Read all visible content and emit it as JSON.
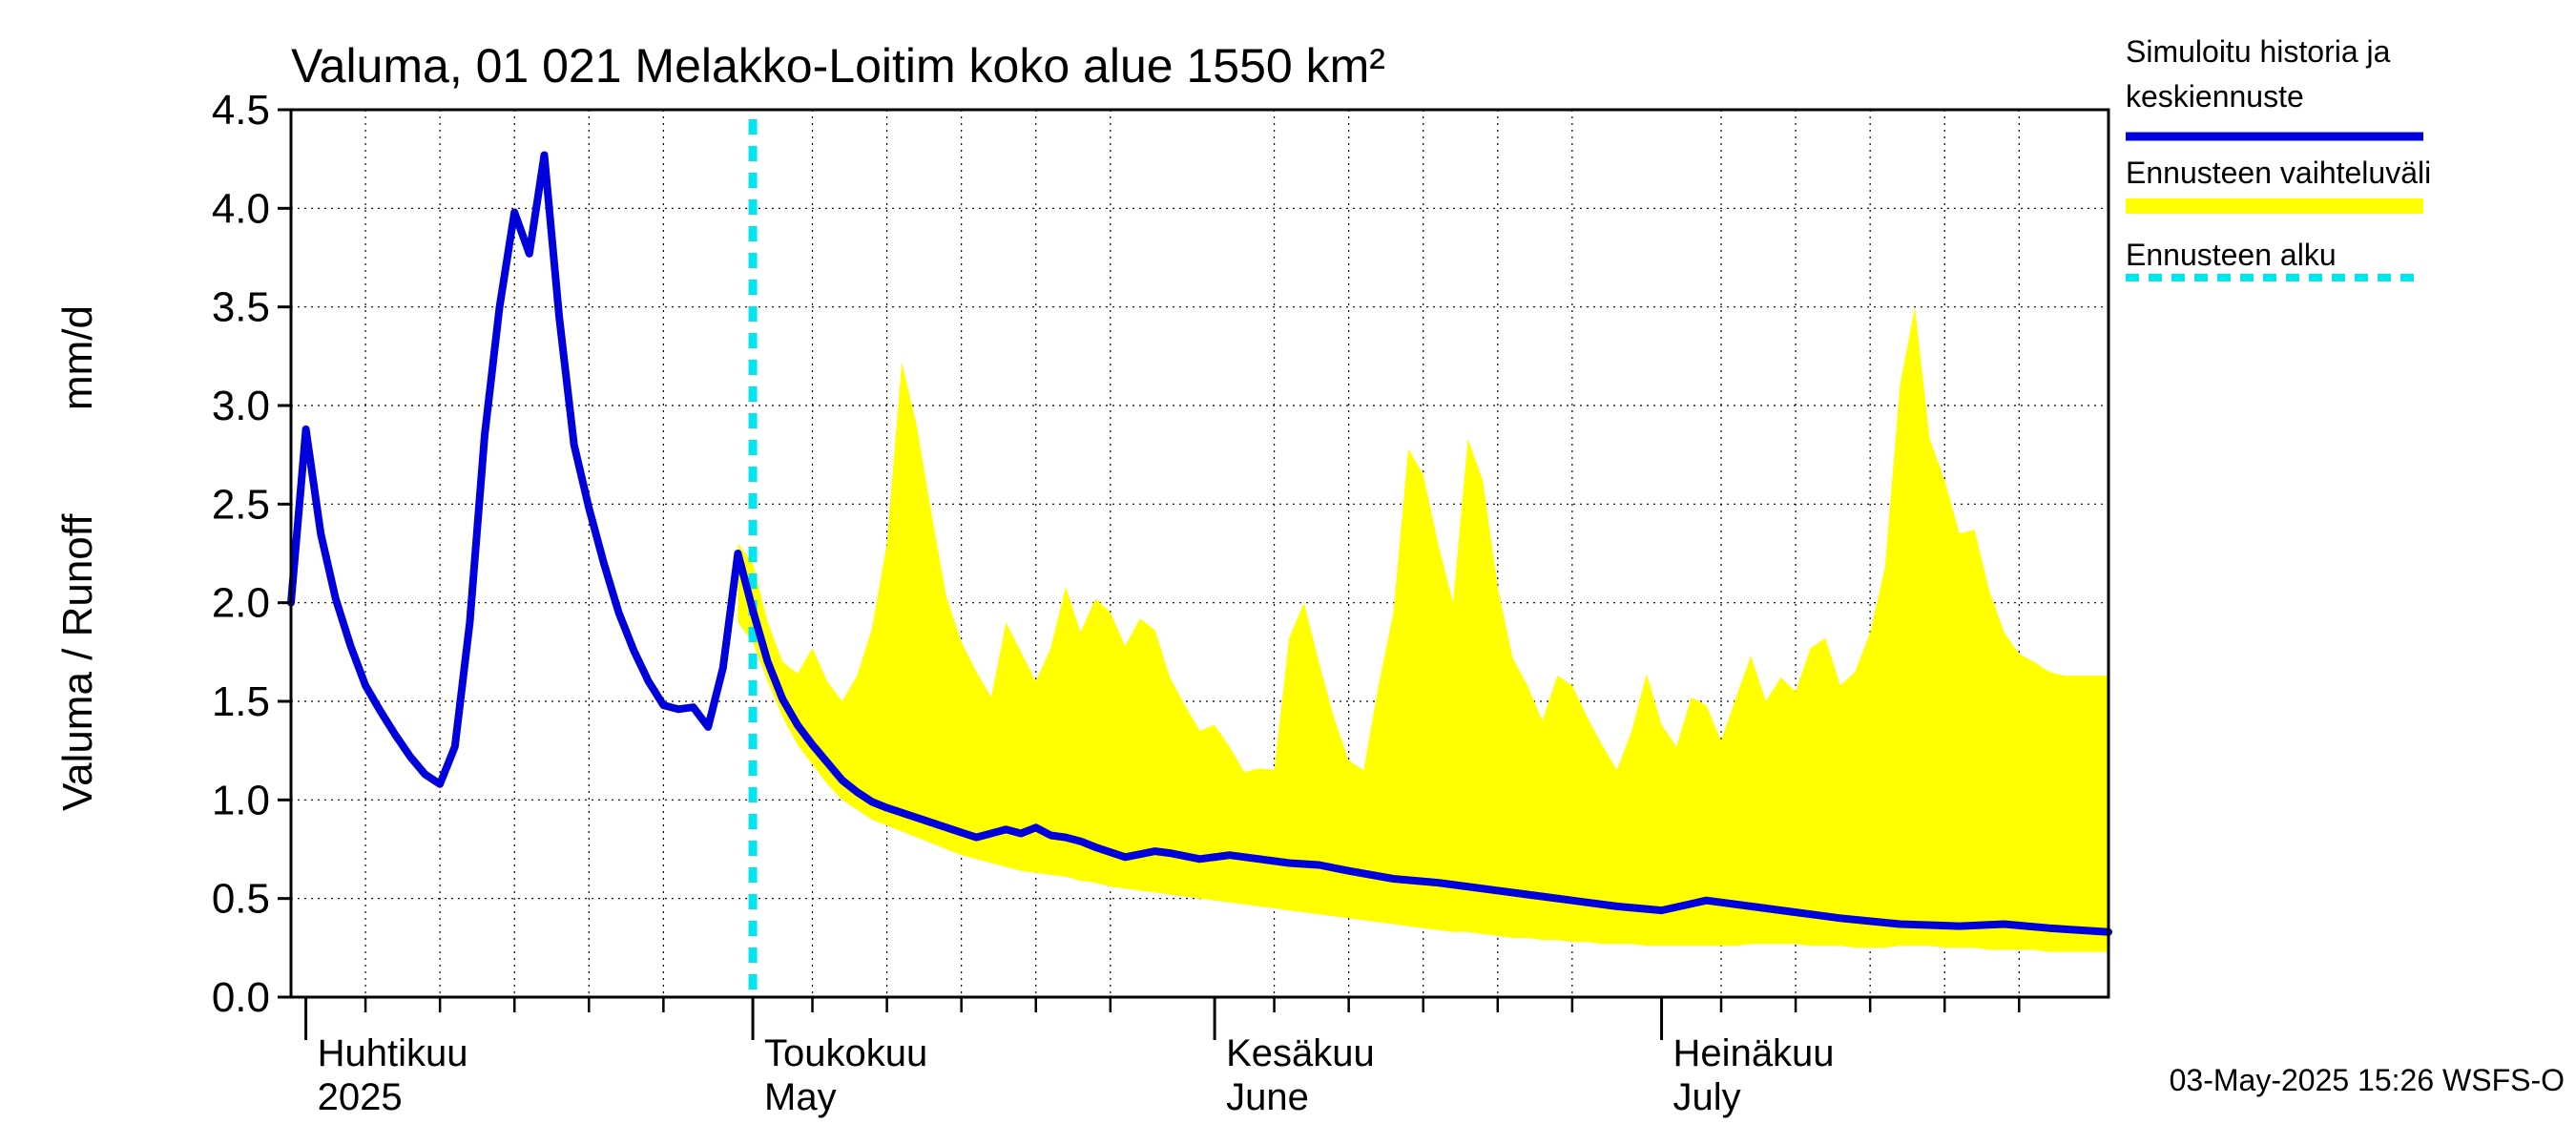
{
  "chart_data": {
    "type": "line",
    "title": "Valuma, 01 021 Melakko-Loitim koko alue 1550 km²",
    "ylabel_left": "Valuma / Runoff",
    "ylabel_unit": "mm/d",
    "ylim": [
      0,
      4.5
    ],
    "yticks": [
      "0.0",
      "0.5",
      "1.0",
      "1.5",
      "2.0",
      "2.5",
      "3.0",
      "3.5",
      "4.0",
      "4.5"
    ],
    "xlim": [
      "2025-03-31",
      "2025-07-31"
    ],
    "month_labels": [
      {
        "line1": "Huhtikuu",
        "line2": "2025",
        "start": "2025-04-01"
      },
      {
        "line1": "Toukokuu",
        "line2": "May",
        "start": "2025-05-01"
      },
      {
        "line1": "Kesäkuu",
        "line2": "June",
        "start": "2025-06-01"
      },
      {
        "line1": "Heinäkuu",
        "line2": "July",
        "start": "2025-07-01"
      }
    ],
    "forecast_start": "2025-05-01",
    "grid": true,
    "legend_position": "right",
    "series": [
      {
        "name": "Simuloitu historia ja keskiennuste",
        "kind": "line",
        "color": "#0000dd",
        "dates": [
          "2025-03-31",
          "2025-04-01",
          "2025-04-02",
          "2025-04-03",
          "2025-04-04",
          "2025-04-05",
          "2025-04-06",
          "2025-04-07",
          "2025-04-08",
          "2025-04-09",
          "2025-04-10",
          "2025-04-11",
          "2025-04-12",
          "2025-04-13",
          "2025-04-14",
          "2025-04-15",
          "2025-04-16",
          "2025-04-17",
          "2025-04-18",
          "2025-04-19",
          "2025-04-20",
          "2025-04-21",
          "2025-04-22",
          "2025-04-23",
          "2025-04-24",
          "2025-04-25",
          "2025-04-26",
          "2025-04-27",
          "2025-04-28",
          "2025-04-29",
          "2025-04-30",
          "2025-05-01",
          "2025-05-02",
          "2025-05-03",
          "2025-05-04",
          "2025-05-05",
          "2025-05-06",
          "2025-05-07",
          "2025-05-08",
          "2025-05-09",
          "2025-05-10",
          "2025-05-12",
          "2025-05-14",
          "2025-05-16",
          "2025-05-18",
          "2025-05-19",
          "2025-05-20",
          "2025-05-21",
          "2025-05-22",
          "2025-05-23",
          "2025-05-24",
          "2025-05-26",
          "2025-05-28",
          "2025-05-29",
          "2025-05-31",
          "2025-06-02",
          "2025-06-04",
          "2025-06-06",
          "2025-06-08",
          "2025-06-10",
          "2025-06-13",
          "2025-06-16",
          "2025-06-19",
          "2025-06-22",
          "2025-06-25",
          "2025-06-28",
          "2025-07-01",
          "2025-07-04",
          "2025-07-07",
          "2025-07-10",
          "2025-07-13",
          "2025-07-17",
          "2025-07-21",
          "2025-07-24",
          "2025-07-27",
          "2025-07-31"
        ],
        "values": [
          2.0,
          2.88,
          2.35,
          2.02,
          1.78,
          1.58,
          1.45,
          1.33,
          1.22,
          1.13,
          1.08,
          1.27,
          1.9,
          2.85,
          3.5,
          3.98,
          3.77,
          4.27,
          3.45,
          2.8,
          2.48,
          2.2,
          1.95,
          1.76,
          1.6,
          1.48,
          1.46,
          1.47,
          1.37,
          1.67,
          2.25,
          1.96,
          1.7,
          1.51,
          1.38,
          1.28,
          1.19,
          1.1,
          1.04,
          0.99,
          0.96,
          0.91,
          0.86,
          0.81,
          0.85,
          0.83,
          0.86,
          0.82,
          0.81,
          0.79,
          0.76,
          0.71,
          0.74,
          0.73,
          0.7,
          0.72,
          0.7,
          0.68,
          0.67,
          0.64,
          0.6,
          0.58,
          0.55,
          0.52,
          0.49,
          0.46,
          0.44,
          0.49,
          0.46,
          0.43,
          0.4,
          0.37,
          0.36,
          0.37,
          0.35,
          0.33
        ]
      },
      {
        "name": "Ennusteen vaihteluväli",
        "kind": "band",
        "color": "#ffff00",
        "dates": [
          "2025-04-30",
          "2025-05-01",
          "2025-05-02",
          "2025-05-03",
          "2025-05-04",
          "2025-05-05",
          "2025-05-06",
          "2025-05-07",
          "2025-05-08",
          "2025-05-09",
          "2025-05-10",
          "2025-05-11",
          "2025-05-12",
          "2025-05-13",
          "2025-05-14",
          "2025-05-15",
          "2025-05-16",
          "2025-05-17",
          "2025-05-18",
          "2025-05-19",
          "2025-05-20",
          "2025-05-21",
          "2025-05-22",
          "2025-05-23",
          "2025-05-24",
          "2025-05-25",
          "2025-05-26",
          "2025-05-27",
          "2025-05-28",
          "2025-05-29",
          "2025-05-30",
          "2025-05-31",
          "2025-06-01",
          "2025-06-02",
          "2025-06-03",
          "2025-06-04",
          "2025-06-05",
          "2025-06-06",
          "2025-06-07",
          "2025-06-08",
          "2025-06-09",
          "2025-06-10",
          "2025-06-11",
          "2025-06-12",
          "2025-06-13",
          "2025-06-14",
          "2025-06-15",
          "2025-06-16",
          "2025-06-17",
          "2025-06-18",
          "2025-06-19",
          "2025-06-20",
          "2025-06-21",
          "2025-06-22",
          "2025-06-23",
          "2025-06-24",
          "2025-06-25",
          "2025-06-26",
          "2025-06-27",
          "2025-06-28",
          "2025-06-29",
          "2025-06-30",
          "2025-07-01",
          "2025-07-02",
          "2025-07-03",
          "2025-07-04",
          "2025-07-05",
          "2025-07-06",
          "2025-07-07",
          "2025-07-08",
          "2025-07-09",
          "2025-07-10",
          "2025-07-11",
          "2025-07-12",
          "2025-07-13",
          "2025-07-14",
          "2025-07-15",
          "2025-07-16",
          "2025-07-17",
          "2025-07-18",
          "2025-07-19",
          "2025-07-20",
          "2025-07-21",
          "2025-07-22",
          "2025-07-23",
          "2025-07-24",
          "2025-07-25",
          "2025-07-26",
          "2025-07-27",
          "2025-07-28",
          "2025-07-29",
          "2025-07-30",
          "2025-07-31"
        ],
        "upper": [
          2.3,
          2.2,
          1.9,
          1.7,
          1.64,
          1.77,
          1.6,
          1.5,
          1.63,
          1.87,
          2.3,
          3.22,
          2.9,
          2.45,
          2.03,
          1.8,
          1.65,
          1.52,
          1.9,
          1.75,
          1.6,
          1.77,
          2.08,
          1.85,
          2.02,
          1.95,
          1.78,
          1.92,
          1.86,
          1.62,
          1.48,
          1.35,
          1.38,
          1.27,
          1.14,
          1.16,
          1.15,
          1.82,
          2.0,
          1.7,
          1.42,
          1.2,
          1.15,
          1.58,
          1.95,
          2.78,
          2.65,
          2.3,
          2.0,
          2.83,
          2.62,
          2.08,
          1.72,
          1.58,
          1.4,
          1.63,
          1.58,
          1.42,
          1.28,
          1.15,
          1.35,
          1.64,
          1.38,
          1.27,
          1.52,
          1.48,
          1.3,
          1.52,
          1.73,
          1.5,
          1.62,
          1.55,
          1.77,
          1.82,
          1.58,
          1.65,
          1.85,
          2.18,
          3.1,
          3.5,
          2.83,
          2.62,
          2.35,
          2.37,
          2.06,
          1.85,
          1.74,
          1.7,
          1.65,
          1.63,
          1.63,
          1.63,
          1.63
        ],
        "lower": [
          1.9,
          1.8,
          1.6,
          1.42,
          1.28,
          1.18,
          1.08,
          1.0,
          0.95,
          0.9,
          0.87,
          0.84,
          0.81,
          0.78,
          0.75,
          0.72,
          0.7,
          0.68,
          0.66,
          0.64,
          0.63,
          0.62,
          0.61,
          0.59,
          0.58,
          0.56,
          0.55,
          0.54,
          0.53,
          0.52,
          0.51,
          0.5,
          0.49,
          0.48,
          0.47,
          0.46,
          0.45,
          0.44,
          0.43,
          0.42,
          0.41,
          0.4,
          0.39,
          0.38,
          0.37,
          0.36,
          0.35,
          0.34,
          0.33,
          0.33,
          0.32,
          0.31,
          0.3,
          0.3,
          0.29,
          0.29,
          0.28,
          0.28,
          0.27,
          0.27,
          0.27,
          0.26,
          0.26,
          0.26,
          0.26,
          0.26,
          0.26,
          0.26,
          0.27,
          0.27,
          0.27,
          0.27,
          0.26,
          0.26,
          0.26,
          0.25,
          0.25,
          0.25,
          0.26,
          0.26,
          0.26,
          0.25,
          0.25,
          0.25,
          0.24,
          0.24,
          0.24,
          0.24,
          0.23,
          0.23,
          0.23,
          0.23,
          0.23
        ]
      },
      {
        "name": "Ennusteen alku",
        "kind": "vline",
        "color": "#00e5ee",
        "date": "2025-05-01"
      }
    ]
  },
  "legend": {
    "items": [
      {
        "line1": "Simuloitu historia ja",
        "line2": "keskiennuste",
        "kind": "line",
        "color": "#0000dd"
      },
      {
        "line1": "Ennusteen vaihteluväli",
        "line2": "",
        "kind": "band",
        "color": "#ffff00"
      },
      {
        "line1": "Ennusteen alku",
        "line2": "",
        "kind": "dashed",
        "color": "#00e5ee"
      }
    ]
  },
  "footer": {
    "timestamp": "03-May-2025 15:26 WSFS-O"
  }
}
